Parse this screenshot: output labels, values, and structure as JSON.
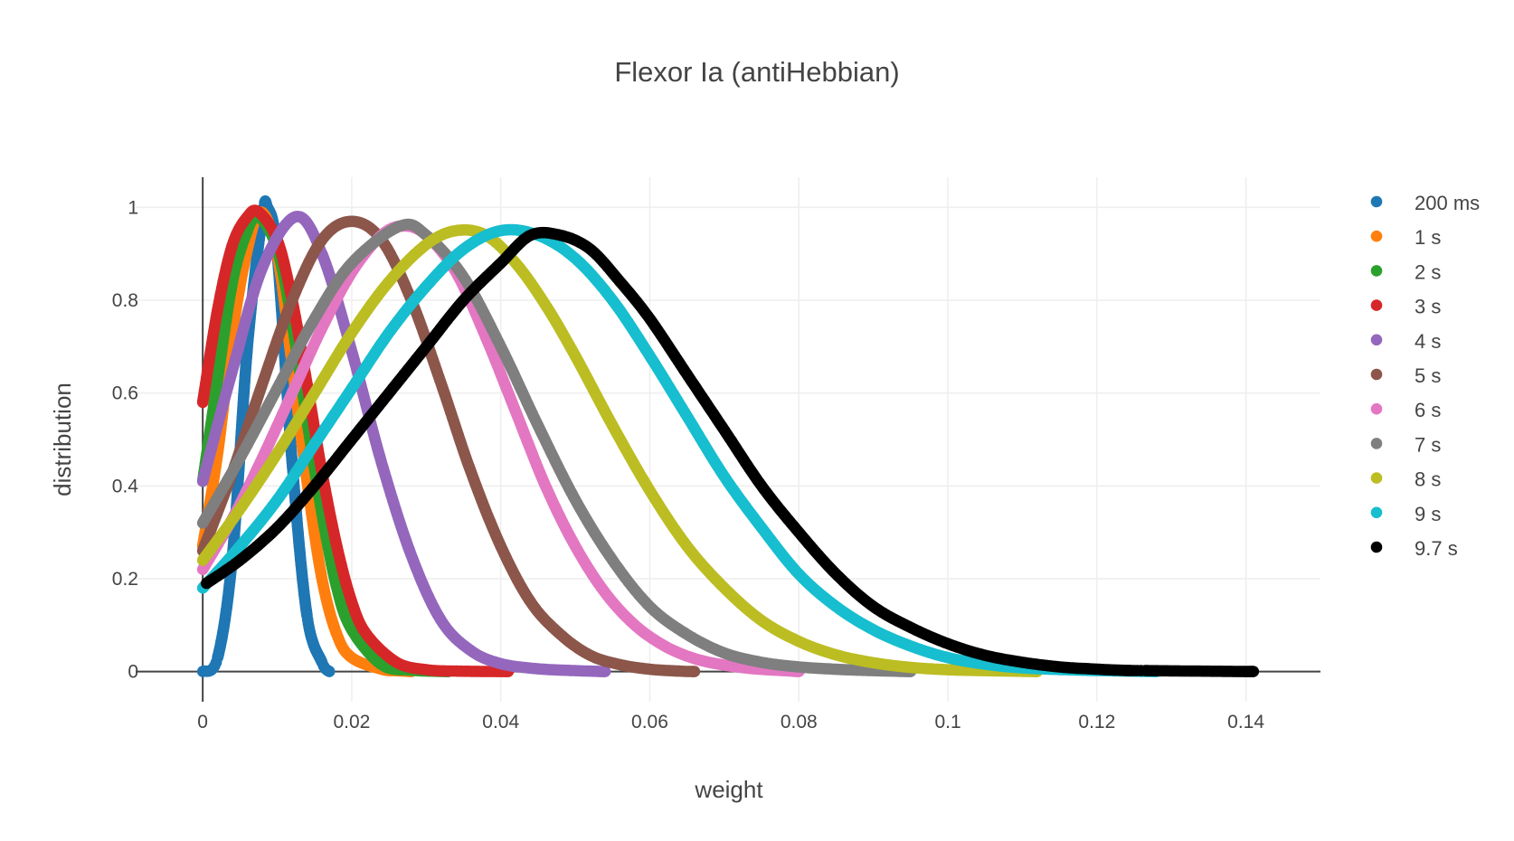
{
  "chart_data": {
    "type": "scatter",
    "title": "Flexor Ia (antiHebbian)",
    "xlabel": "weight",
    "ylabel": "distribution",
    "xlim": [
      -0.009,
      0.15
    ],
    "ylim": [
      -0.065,
      1.065
    ],
    "xticks": [
      0,
      0.02,
      0.04,
      0.06,
      0.08,
      0.1,
      0.12,
      0.14
    ],
    "xtick_labels": [
      "0",
      "0.02",
      "0.04",
      "0.06",
      "0.08",
      "0.1",
      "0.12",
      "0.14"
    ],
    "yticks": [
      0,
      0.2,
      0.4,
      0.6,
      0.8,
      1
    ],
    "ytick_labels": [
      "0",
      "0.2",
      "0.4",
      "0.6",
      "0.8",
      "1"
    ],
    "grid": true,
    "legend_position": "right",
    "series": [
      {
        "name": "200 ms",
        "color": "#1f77b4",
        "x": [
          0,
          0.002,
          0.004,
          0.006,
          0.008,
          0.0087,
          0.01,
          0.012,
          0.014,
          0.016,
          0.017
        ],
        "y": [
          0,
          0.03,
          0.25,
          0.7,
          0.98,
          1.0,
          0.9,
          0.45,
          0.12,
          0.02,
          0
        ]
      },
      {
        "name": "1 s",
        "color": "#ff7f0e",
        "x": [
          0,
          0.002,
          0.004,
          0.006,
          0.0078,
          0.01,
          0.012,
          0.014,
          0.016,
          0.018,
          0.02,
          0.024,
          0.026,
          0.028
        ],
        "y": [
          0.27,
          0.47,
          0.73,
          0.91,
          0.99,
          0.9,
          0.66,
          0.41,
          0.2,
          0.08,
          0.03,
          0.005,
          0.002,
          0
        ]
      },
      {
        "name": "2 s",
        "color": "#2ca02c",
        "x": [
          0,
          0.002,
          0.004,
          0.006,
          0.0075,
          0.01,
          0.012,
          0.014,
          0.016,
          0.018,
          0.02,
          0.024,
          0.028,
          0.033
        ],
        "y": [
          0.41,
          0.63,
          0.84,
          0.95,
          0.98,
          0.91,
          0.75,
          0.54,
          0.34,
          0.18,
          0.09,
          0.015,
          0.003,
          0
        ]
      },
      {
        "name": "3 s",
        "color": "#d62728",
        "x": [
          0,
          0.002,
          0.004,
          0.006,
          0.0075,
          0.01,
          0.012,
          0.014,
          0.016,
          0.018,
          0.02,
          0.022,
          0.026,
          0.03,
          0.034,
          0.041
        ],
        "y": [
          0.58,
          0.78,
          0.92,
          0.98,
          0.99,
          0.93,
          0.8,
          0.62,
          0.43,
          0.27,
          0.15,
          0.08,
          0.02,
          0.004,
          0.001,
          0
        ]
      },
      {
        "name": "4 s",
        "color": "#9467bd",
        "x": [
          0,
          0.004,
          0.008,
          0.0125,
          0.016,
          0.02,
          0.024,
          0.028,
          0.032,
          0.036,
          0.04,
          0.045,
          0.05,
          0.054
        ],
        "y": [
          0.41,
          0.65,
          0.87,
          0.98,
          0.9,
          0.69,
          0.45,
          0.25,
          0.11,
          0.045,
          0.017,
          0.006,
          0.002,
          0
        ]
      },
      {
        "name": "5 s",
        "color": "#8c564b",
        "x": [
          0,
          0.004,
          0.008,
          0.012,
          0.016,
          0.02,
          0.024,
          0.028,
          0.032,
          0.036,
          0.04,
          0.044,
          0.048,
          0.052,
          0.056,
          0.06,
          0.064,
          0.066
        ],
        "y": [
          0.26,
          0.43,
          0.62,
          0.8,
          0.93,
          0.97,
          0.93,
          0.8,
          0.62,
          0.43,
          0.27,
          0.15,
          0.08,
          0.035,
          0.015,
          0.005,
          0.001,
          0
        ]
      },
      {
        "name": "6 s",
        "color": "#e377c2",
        "x": [
          0,
          0.004,
          0.008,
          0.012,
          0.016,
          0.02,
          0.024,
          0.027,
          0.03,
          0.034,
          0.038,
          0.042,
          0.046,
          0.05,
          0.054,
          0.058,
          0.062,
          0.066,
          0.07,
          0.074,
          0.078,
          0.08
        ],
        "y": [
          0.22,
          0.33,
          0.46,
          0.6,
          0.74,
          0.86,
          0.94,
          0.96,
          0.94,
          0.86,
          0.72,
          0.56,
          0.4,
          0.27,
          0.17,
          0.1,
          0.055,
          0.028,
          0.014,
          0.006,
          0.002,
          0
        ]
      },
      {
        "name": "7 s",
        "color": "#7f7f7f",
        "x": [
          0,
          0.005,
          0.01,
          0.015,
          0.02,
          0.0265,
          0.03,
          0.035,
          0.04,
          0.045,
          0.05,
          0.055,
          0.06,
          0.065,
          0.07,
          0.075,
          0.08,
          0.085,
          0.09,
          0.095
        ],
        "y": [
          0.32,
          0.46,
          0.61,
          0.76,
          0.88,
          0.96,
          0.94,
          0.85,
          0.7,
          0.53,
          0.37,
          0.24,
          0.14,
          0.08,
          0.04,
          0.02,
          0.01,
          0.005,
          0.002,
          0
        ]
      },
      {
        "name": "8 s",
        "color": "#bcbd22",
        "x": [
          0,
          0.005,
          0.01,
          0.015,
          0.02,
          0.025,
          0.03,
          0.034,
          0.038,
          0.042,
          0.046,
          0.05,
          0.055,
          0.06,
          0.065,
          0.07,
          0.075,
          0.08,
          0.085,
          0.09,
          0.095,
          0.1,
          0.105,
          0.112
        ],
        "y": [
          0.24,
          0.35,
          0.47,
          0.6,
          0.73,
          0.84,
          0.92,
          0.95,
          0.94,
          0.88,
          0.79,
          0.68,
          0.53,
          0.39,
          0.27,
          0.18,
          0.11,
          0.065,
          0.036,
          0.019,
          0.009,
          0.004,
          0.002,
          0
        ]
      },
      {
        "name": "9 s",
        "color": "#17becf",
        "x": [
          0,
          0.005,
          0.01,
          0.015,
          0.02,
          0.025,
          0.03,
          0.035,
          0.04,
          0.045,
          0.05,
          0.055,
          0.06,
          0.065,
          0.07,
          0.075,
          0.08,
          0.085,
          0.09,
          0.095,
          0.1,
          0.105,
          0.11,
          0.118,
          0.128
        ],
        "y": [
          0.18,
          0.27,
          0.37,
          0.49,
          0.61,
          0.73,
          0.83,
          0.91,
          0.95,
          0.94,
          0.89,
          0.8,
          0.68,
          0.55,
          0.42,
          0.31,
          0.21,
          0.14,
          0.09,
          0.055,
          0.03,
          0.016,
          0.008,
          0.003,
          0
        ]
      },
      {
        "name": "9.7 s",
        "color": "#000000",
        "x": [
          0.0005,
          0.005,
          0.01,
          0.015,
          0.02,
          0.025,
          0.03,
          0.035,
          0.04,
          0.044,
          0.048,
          0.052,
          0.056,
          0.06,
          0.065,
          0.07,
          0.075,
          0.08,
          0.085,
          0.09,
          0.095,
          0.1,
          0.105,
          0.11,
          0.115,
          0.119,
          0.123,
          0.1265,
          0.141
        ],
        "y": [
          0.19,
          0.24,
          0.31,
          0.4,
          0.5,
          0.6,
          0.7,
          0.8,
          0.88,
          0.94,
          0.94,
          0.91,
          0.84,
          0.76,
          0.64,
          0.52,
          0.4,
          0.3,
          0.21,
          0.14,
          0.095,
          0.06,
          0.035,
          0.02,
          0.01,
          0.006,
          0.003,
          0.002,
          0
        ]
      }
    ]
  }
}
